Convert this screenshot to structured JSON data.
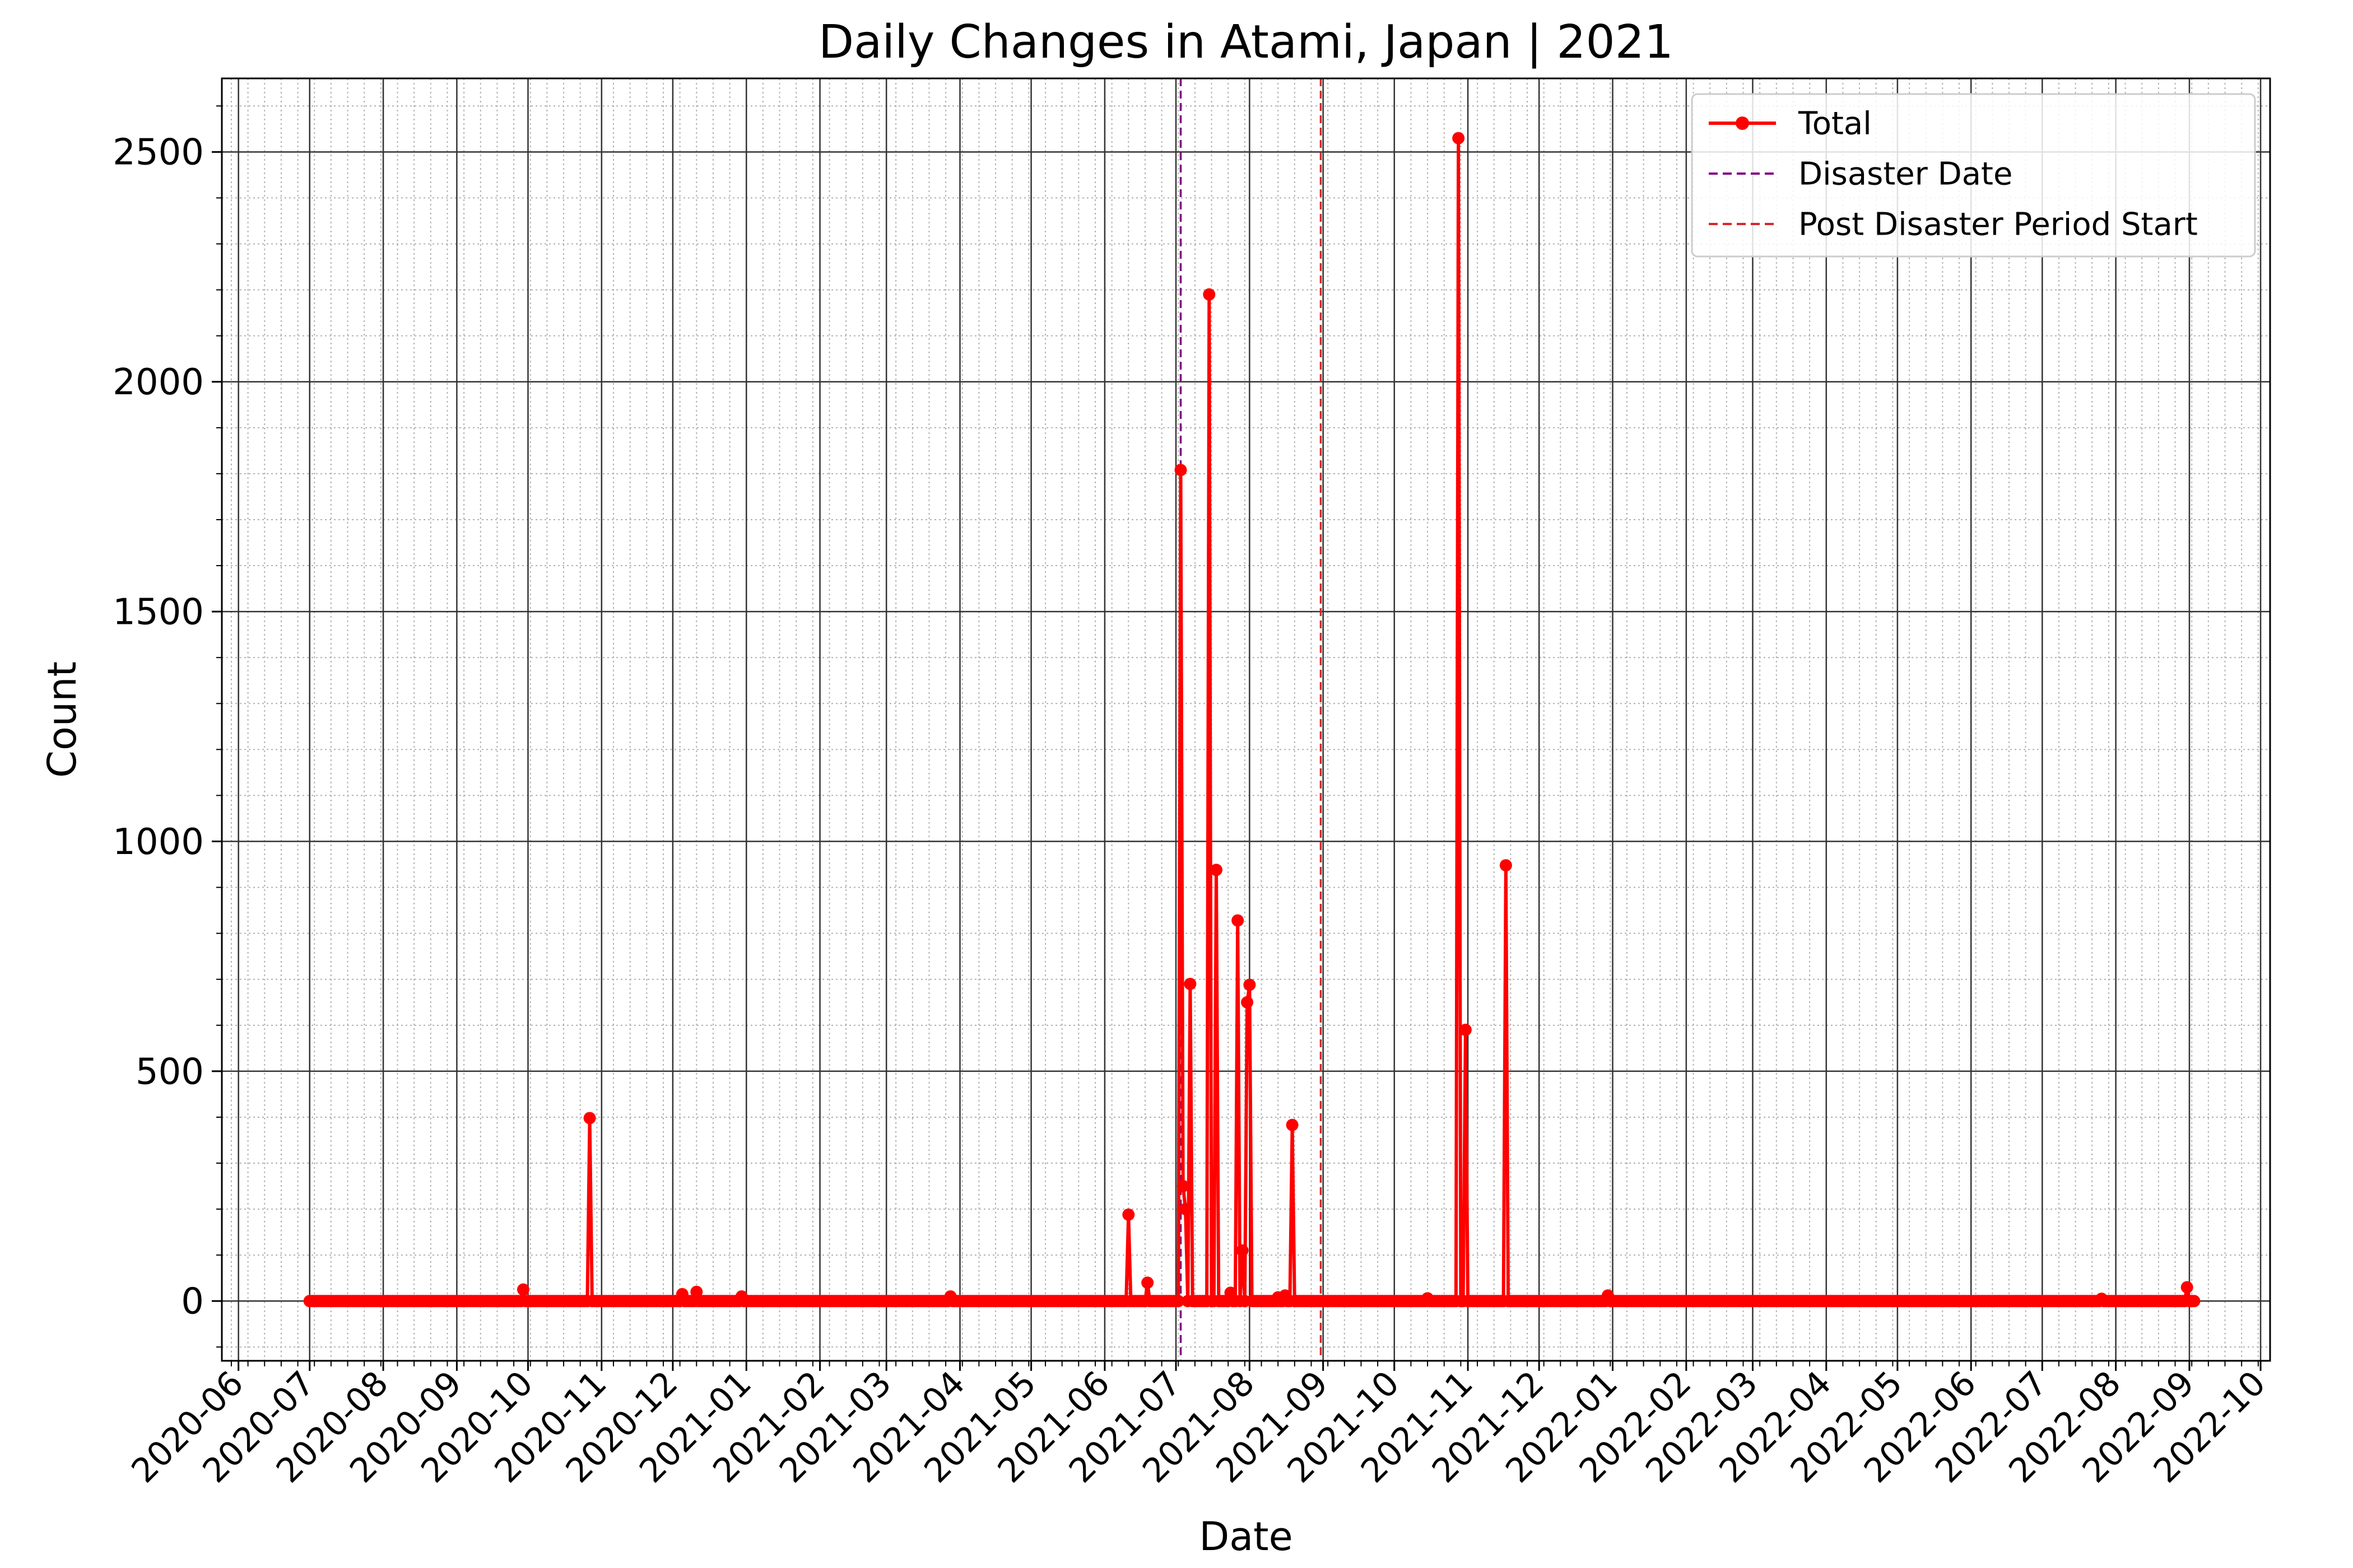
{
  "chart_data": {
    "type": "line",
    "title": "Daily Changes in Atami, Japan | 2021",
    "xlabel": "Date",
    "ylabel": "Count",
    "xlim": [
      "2020-05-25",
      "2022-10-05"
    ],
    "ylim": [
      -130,
      2660
    ],
    "yticks": [
      0,
      500,
      1000,
      1500,
      2000,
      2500
    ],
    "xticks": [
      "2020-06",
      "2020-07",
      "2020-08",
      "2020-09",
      "2020-10",
      "2020-11",
      "2020-12",
      "2021-01",
      "2021-02",
      "2021-03",
      "2021-04",
      "2021-05",
      "2021-06",
      "2021-07",
      "2021-08",
      "2021-09",
      "2021-10",
      "2021-11",
      "2021-12",
      "2022-01",
      "2022-02",
      "2022-03",
      "2022-04",
      "2022-05",
      "2022-06",
      "2022-07",
      "2022-08",
      "2022-09",
      "2022-10"
    ],
    "grid": true,
    "legend_position": "top-right",
    "series": [
      {
        "name": "Total",
        "color": "#ff0000",
        "marker": "circle",
        "baseline_start": "2020-07-01",
        "baseline_end": "2022-09-03",
        "points": [
          {
            "date": "2020-09-29",
            "value": 25
          },
          {
            "date": "2020-10-27",
            "value": 398
          },
          {
            "date": "2020-12-05",
            "value": 15
          },
          {
            "date": "2020-12-11",
            "value": 20
          },
          {
            "date": "2020-12-30",
            "value": 10
          },
          {
            "date": "2021-03-28",
            "value": 10
          },
          {
            "date": "2021-06-11",
            "value": 188
          },
          {
            "date": "2021-06-19",
            "value": 40
          },
          {
            "date": "2021-07-03",
            "value": 1808
          },
          {
            "date": "2021-07-04",
            "value": 250
          },
          {
            "date": "2021-07-05",
            "value": 200
          },
          {
            "date": "2021-07-07",
            "value": 690
          },
          {
            "date": "2021-07-15",
            "value": 2190
          },
          {
            "date": "2021-07-18",
            "value": 938
          },
          {
            "date": "2021-07-24",
            "value": 18
          },
          {
            "date": "2021-07-27",
            "value": 828
          },
          {
            "date": "2021-07-29",
            "value": 110
          },
          {
            "date": "2021-07-31",
            "value": 650
          },
          {
            "date": "2021-08-01",
            "value": 688
          },
          {
            "date": "2021-08-13",
            "value": 8
          },
          {
            "date": "2021-08-16",
            "value": 12
          },
          {
            "date": "2021-08-19",
            "value": 383
          },
          {
            "date": "2021-10-15",
            "value": 6
          },
          {
            "date": "2021-10-28",
            "value": 2530
          },
          {
            "date": "2021-10-31",
            "value": 590
          },
          {
            "date": "2021-11-17",
            "value": 948
          },
          {
            "date": "2021-12-30",
            "value": 12
          },
          {
            "date": "2022-07-26",
            "value": 5
          },
          {
            "date": "2022-08-31",
            "value": 30
          }
        ]
      },
      {
        "name": "Disaster Date",
        "type": "vline",
        "date": "2021-07-03",
        "color": "#800080",
        "dash": "dashed"
      },
      {
        "name": "Post Disaster Period Start",
        "type": "vline",
        "date": "2021-08-31",
        "color": "#d62728",
        "dash": "dashed"
      }
    ]
  }
}
